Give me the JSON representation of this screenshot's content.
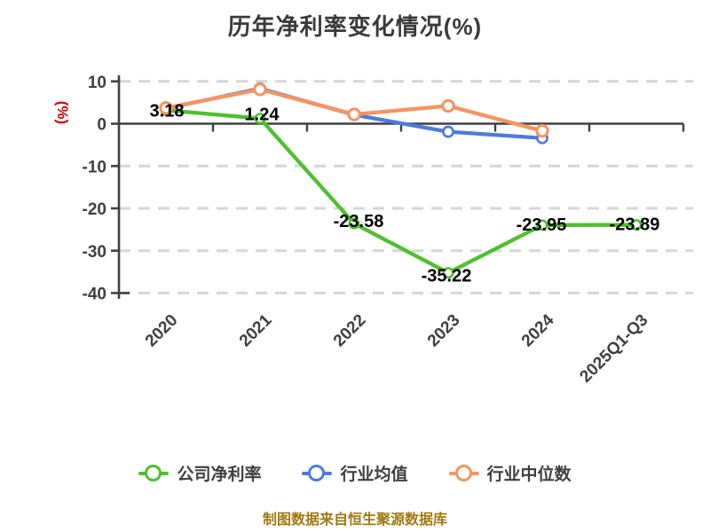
{
  "footer": {
    "text": "制图数据来自恒生聚源数据库"
  },
  "colors": {
    "axis": "#404040",
    "grid": "#d6d6d6",
    "data_label": "#000000",
    "title": "#3a3a3a",
    "unit_label": "#d30000",
    "legend_text": "#3f3f3f",
    "background": "#ffffff"
  },
  "chart_data": {
    "type": "line",
    "title": "历年净利率变化情况(%)",
    "y_unit_label": "(%)",
    "categories": [
      "2020",
      "2021",
      "2022",
      "2023",
      "2024",
      "2025Q1-Q3"
    ],
    "series": [
      {
        "name": "公司净利率",
        "color": "#4ec02c",
        "values": [
          3.18,
          1.24,
          -23.58,
          -35.22,
          -23.95,
          -23.89
        ],
        "data_labels": [
          "3.18",
          "1.24",
          "-23.58",
          "-35.22",
          "-23.95",
          "-23.89"
        ]
      },
      {
        "name": "行业均值",
        "color": "#4d7bdd",
        "values": [
          3.6,
          8.3,
          2.1,
          -1.9,
          -3.4,
          null
        ],
        "data_labels": null
      },
      {
        "name": "行业中位数",
        "color": "#f79360",
        "values": [
          3.7,
          8.1,
          2.2,
          4.2,
          -1.7,
          null
        ],
        "data_labels": null
      }
    ],
    "ylim": [
      -40,
      10
    ],
    "yticks": [
      10,
      0,
      -10,
      -20,
      -30,
      -40
    ],
    "grid": "horizontal-dashed",
    "legend_position": "bottom",
    "marker_style": "hollow-circle"
  }
}
